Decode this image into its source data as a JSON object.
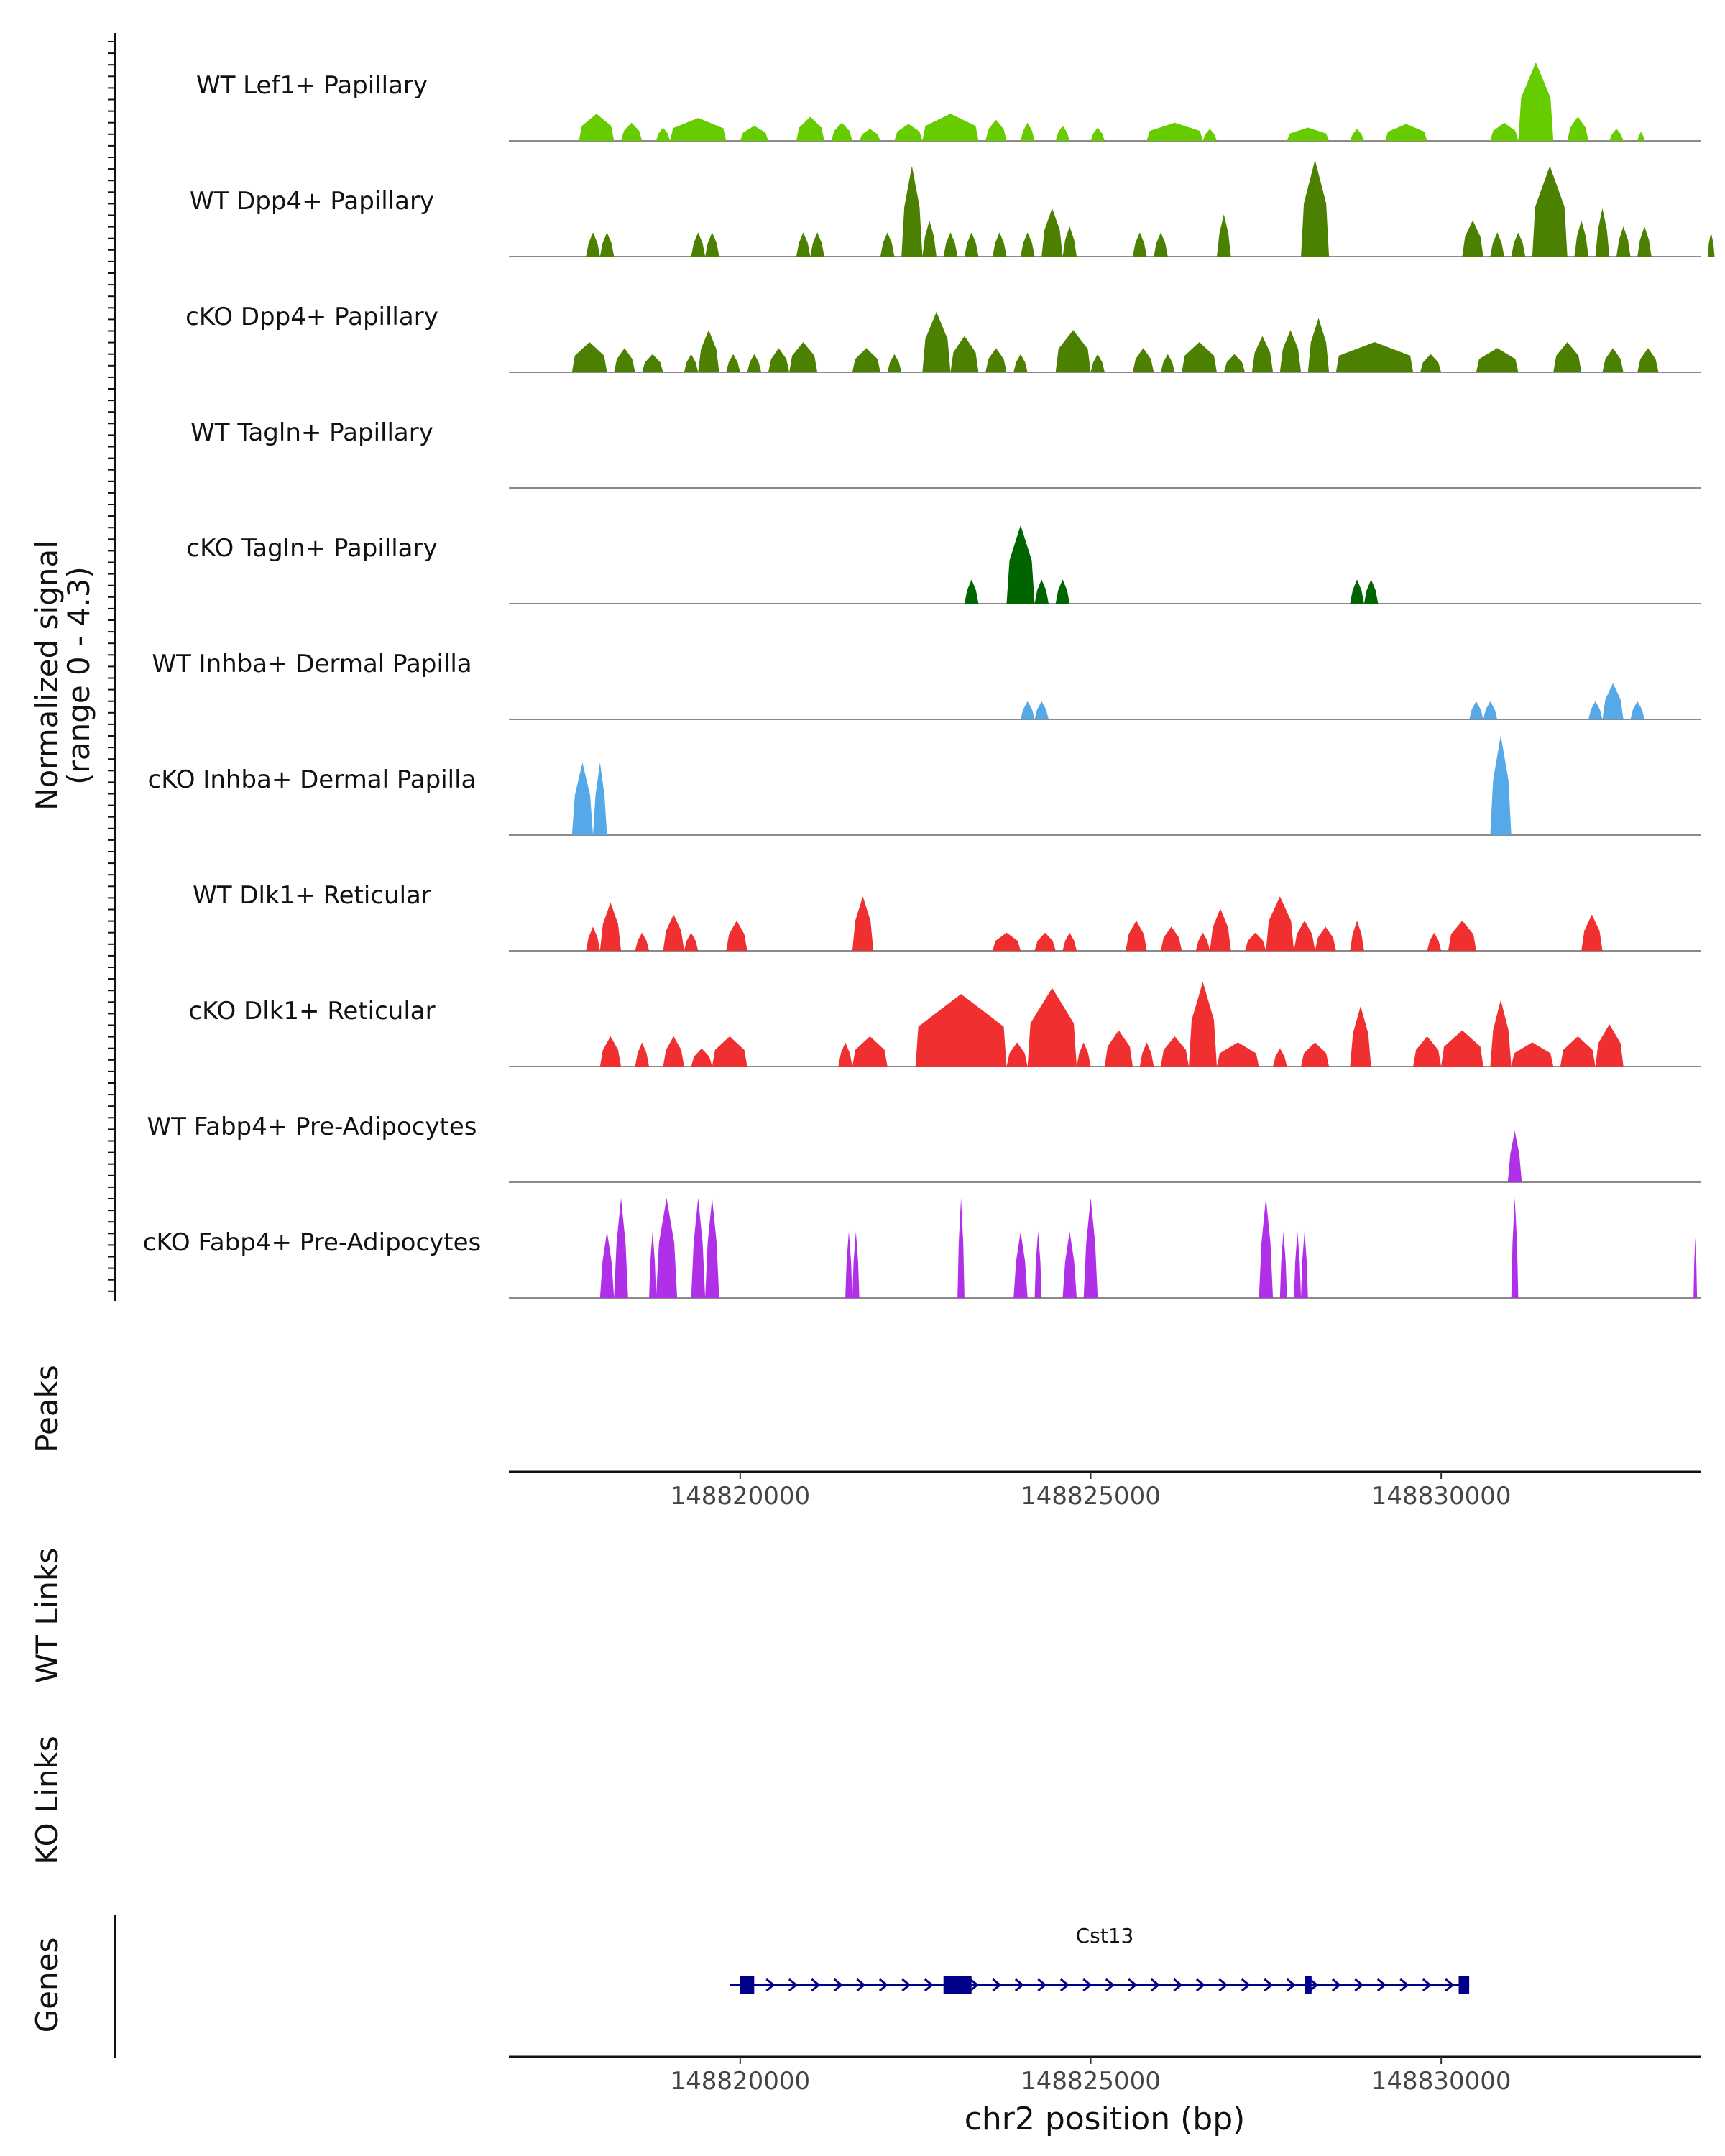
{
  "chart_data": {
    "type": "coverage",
    "region": {
      "chrom": "chr2",
      "start": 148816700,
      "end": 148833700
    },
    "xlabel": "chr2 position (bp)",
    "x_ticks": [
      148820000,
      148825000,
      148830000
    ],
    "x_tick_labels": [
      "148820000",
      "148825000",
      "148830000"
    ],
    "signal_axis_label": "Normalized signal",
    "signal_range_label": "(range 0 - 4.3)",
    "ylim": [
      0,
      4.3
    ],
    "panel_labels": {
      "peaks": "Peaks",
      "wt_links": "WT Links",
      "ko_links": "KO Links",
      "genes": "Genes"
    },
    "tracks": [
      {
        "name": "WT Lef1+ Papillary",
        "color": "#66cc00",
        "peaks": [
          [
            148817700,
            148818200,
            0.45
          ],
          [
            148818300,
            148818600,
            0.3
          ],
          [
            148818800,
            148819000,
            0.22
          ],
          [
            148819000,
            148819800,
            0.38
          ],
          [
            148820000,
            148820400,
            0.25
          ],
          [
            148820800,
            148821200,
            0.4
          ],
          [
            148821300,
            148821600,
            0.3
          ],
          [
            148821700,
            148822000,
            0.2
          ],
          [
            148822200,
            148822600,
            0.28
          ],
          [
            148822600,
            148823400,
            0.45
          ],
          [
            148823500,
            148823800,
            0.35
          ],
          [
            148824000,
            148824200,
            0.3
          ],
          [
            148824500,
            148824700,
            0.25
          ],
          [
            148825000,
            148825200,
            0.22
          ],
          [
            148825800,
            148826600,
            0.3
          ],
          [
            148826600,
            148826800,
            0.2
          ],
          [
            148827800,
            148828400,
            0.22
          ],
          [
            148828700,
            148828900,
            0.2
          ],
          [
            148829200,
            148829800,
            0.28
          ],
          [
            148830700,
            148831100,
            0.3
          ],
          [
            148831100,
            148831600,
            1.3
          ],
          [
            148831800,
            148832100,
            0.4
          ],
          [
            148832400,
            148832600,
            0.2
          ],
          [
            148832800,
            148832900,
            0.15
          ]
        ]
      },
      {
        "name": "WT Dpp4+ Papillary",
        "color": "#4c8000",
        "peaks": [
          [
            148817800,
            148818000,
            0.4
          ],
          [
            148818000,
            148818200,
            0.4
          ],
          [
            148819300,
            148819500,
            0.4
          ],
          [
            148819500,
            148819700,
            0.4
          ],
          [
            148820800,
            148821000,
            0.4
          ],
          [
            148821000,
            148821200,
            0.4
          ],
          [
            148822000,
            148822200,
            0.4
          ],
          [
            148822300,
            148822600,
            1.5
          ],
          [
            148822600,
            148822800,
            0.6
          ],
          [
            148822900,
            148823100,
            0.4
          ],
          [
            148823200,
            148823400,
            0.4
          ],
          [
            148823600,
            148823800,
            0.4
          ],
          [
            148824000,
            148824200,
            0.4
          ],
          [
            148824300,
            148824600,
            0.8
          ],
          [
            148824600,
            148824800,
            0.5
          ],
          [
            148825600,
            148825800,
            0.4
          ],
          [
            148825900,
            148826100,
            0.4
          ],
          [
            148826800,
            148827000,
            0.7
          ],
          [
            148828000,
            148828400,
            1.6
          ],
          [
            148830300,
            148830600,
            0.6
          ],
          [
            148830700,
            148830900,
            0.4
          ],
          [
            148831000,
            148831200,
            0.4
          ],
          [
            148831300,
            148831800,
            1.5
          ],
          [
            148831900,
            148832100,
            0.6
          ],
          [
            148832200,
            148832400,
            0.8
          ],
          [
            148832500,
            148832700,
            0.5
          ],
          [
            148832800,
            148833000,
            0.5
          ],
          [
            148833800,
            148833900,
            0.4
          ]
        ]
      },
      {
        "name": "cKO Dpp4+ Papillary",
        "color": "#4c8000",
        "peaks": [
          [
            148817600,
            148818100,
            0.5
          ],
          [
            148818200,
            148818500,
            0.4
          ],
          [
            148818600,
            148818900,
            0.3
          ],
          [
            148819200,
            148819400,
            0.3
          ],
          [
            148819400,
            148819700,
            0.7
          ],
          [
            148819800,
            148820000,
            0.3
          ],
          [
            148820100,
            148820300,
            0.3
          ],
          [
            148820400,
            148820700,
            0.4
          ],
          [
            148820700,
            148821100,
            0.5
          ],
          [
            148821600,
            148822000,
            0.4
          ],
          [
            148822100,
            148822300,
            0.3
          ],
          [
            148822600,
            148823000,
            1.0
          ],
          [
            148823000,
            148823400,
            0.6
          ],
          [
            148823500,
            148823800,
            0.4
          ],
          [
            148823900,
            148824100,
            0.3
          ],
          [
            148824500,
            148825000,
            0.7
          ],
          [
            148825000,
            148825200,
            0.3
          ],
          [
            148825600,
            148825900,
            0.4
          ],
          [
            148826000,
            148826200,
            0.3
          ],
          [
            148826300,
            148826800,
            0.5
          ],
          [
            148826900,
            148827200,
            0.3
          ],
          [
            148827300,
            148827600,
            0.6
          ],
          [
            148827700,
            148828000,
            0.7
          ],
          [
            148828100,
            148828400,
            0.9
          ],
          [
            148828500,
            148829600,
            0.5
          ],
          [
            148829700,
            148830000,
            0.3
          ],
          [
            148830500,
            148831100,
            0.4
          ],
          [
            148831600,
            148832000,
            0.5
          ],
          [
            148832300,
            148832600,
            0.4
          ],
          [
            148832800,
            148833100,
            0.4
          ]
        ]
      },
      {
        "name": "WT Tagln+ Papillary",
        "color": "#006400",
        "peaks": []
      },
      {
        "name": "cKO Tagln+ Papillary",
        "color": "#006400",
        "peaks": [
          [
            148823200,
            148823400,
            0.4
          ],
          [
            148823800,
            148824200,
            1.3
          ],
          [
            148824200,
            148824400,
            0.4
          ],
          [
            148824500,
            148824700,
            0.4
          ],
          [
            148828700,
            148828900,
            0.4
          ],
          [
            148828900,
            148829100,
            0.4
          ]
        ]
      },
      {
        "name": "WT Inhba+ Dermal Papilla",
        "color": "#56a9e8",
        "peaks": [
          [
            148824000,
            148824200,
            0.3
          ],
          [
            148824200,
            148824400,
            0.3
          ],
          [
            148830400,
            148830600,
            0.3
          ],
          [
            148830600,
            148830800,
            0.3
          ],
          [
            148832100,
            148832300,
            0.3
          ],
          [
            148832300,
            148832600,
            0.6
          ],
          [
            148832700,
            148832900,
            0.3
          ]
        ]
      },
      {
        "name": "cKO Inhba+ Dermal Papilla",
        "color": "#56a9e8",
        "peaks": [
          [
            148817600,
            148817900,
            1.2
          ],
          [
            148817900,
            148818100,
            1.2
          ],
          [
            148830700,
            148831000,
            2.5
          ]
        ]
      },
      {
        "name": "WT Dlk1+ Reticular",
        "color": "#f03030",
        "peaks": [
          [
            148817800,
            148818000,
            0.4
          ],
          [
            148818000,
            148818300,
            0.8
          ],
          [
            148818500,
            148818700,
            0.3
          ],
          [
            148818900,
            148819200,
            0.6
          ],
          [
            148819200,
            148819400,
            0.3
          ],
          [
            148819800,
            148820100,
            0.5
          ],
          [
            148821600,
            148821900,
            0.9
          ],
          [
            148823600,
            148824000,
            0.3
          ],
          [
            148824200,
            148824500,
            0.3
          ],
          [
            148824600,
            148824800,
            0.3
          ],
          [
            148825500,
            148825800,
            0.5
          ],
          [
            148826000,
            148826300,
            0.4
          ],
          [
            148826500,
            148826700,
            0.3
          ],
          [
            148826700,
            148827000,
            0.7
          ],
          [
            148827200,
            148827500,
            0.3
          ],
          [
            148827500,
            148827900,
            0.9
          ],
          [
            148827900,
            148828200,
            0.5
          ],
          [
            148828200,
            148828500,
            0.4
          ],
          [
            148828700,
            148828900,
            0.5
          ],
          [
            148829800,
            148830000,
            0.3
          ],
          [
            148830100,
            148830500,
            0.5
          ],
          [
            148832000,
            148832300,
            0.6
          ]
        ]
      },
      {
        "name": "cKO Dlk1+ Reticular",
        "color": "#f03030",
        "peaks": [
          [
            148818000,
            148818300,
            0.5
          ],
          [
            148818500,
            148818700,
            0.4
          ],
          [
            148818900,
            148819200,
            0.5
          ],
          [
            148819300,
            148819600,
            0.3
          ],
          [
            148819600,
            148820100,
            0.5
          ],
          [
            148821400,
            148821600,
            0.4
          ],
          [
            148821600,
            148822100,
            0.5
          ],
          [
            148822500,
            148823800,
            1.2
          ],
          [
            148823800,
            148824100,
            0.4
          ],
          [
            148824100,
            148824800,
            1.3
          ],
          [
            148824800,
            148825000,
            0.4
          ],
          [
            148825200,
            148825600,
            0.6
          ],
          [
            148825700,
            148825900,
            0.4
          ],
          [
            148826000,
            148826400,
            0.5
          ],
          [
            148826400,
            148826800,
            1.4
          ],
          [
            148826800,
            148827400,
            0.4
          ],
          [
            148827600,
            148827800,
            0.3
          ],
          [
            148828000,
            148828400,
            0.4
          ],
          [
            148828700,
            148829000,
            1.0
          ],
          [
            148829600,
            148830000,
            0.5
          ],
          [
            148830000,
            148830600,
            0.6
          ],
          [
            148830700,
            148831000,
            1.1
          ],
          [
            148831000,
            148831600,
            0.4
          ],
          [
            148831700,
            148832200,
            0.5
          ],
          [
            148832200,
            148832600,
            0.7
          ]
        ]
      },
      {
        "name": "WT Fabp4+ Pre-Adipocytes",
        "color": "#b030e8",
        "peaks": [
          [
            148830950,
            148831150,
            0.85
          ]
        ]
      },
      {
        "name": "cKO Fabp4+ Pre-Adipocytes",
        "color": "#b030e8",
        "peaks": [
          [
            148818000,
            148818200,
            1.1
          ],
          [
            148818200,
            148818400,
            3.2
          ],
          [
            148818700,
            148818800,
            1.1
          ],
          [
            148818800,
            148819100,
            3.2
          ],
          [
            148819300,
            148819500,
            2.2
          ],
          [
            148819500,
            148819700,
            2.2
          ],
          [
            148821500,
            148821600,
            1.1
          ],
          [
            148821600,
            148821700,
            1.1
          ],
          [
            148823100,
            148823200,
            2.2
          ],
          [
            148823900,
            148824100,
            1.1
          ],
          [
            148824200,
            148824300,
            1.1
          ],
          [
            148824600,
            148824800,
            1.1
          ],
          [
            148824900,
            148825100,
            2.2
          ],
          [
            148827400,
            148827600,
            2.2
          ],
          [
            148827700,
            148827800,
            1.1
          ],
          [
            148827900,
            148828000,
            1.1
          ],
          [
            148828000,
            148828100,
            1.1
          ],
          [
            148831000,
            148831100,
            2.2
          ],
          [
            148833600,
            148833650,
            1.0
          ]
        ]
      }
    ],
    "genes": [
      {
        "name": "Cst13",
        "start": 148820000,
        "end": 148830400,
        "strand": "+",
        "exons": [
          [
            148820000,
            148820200
          ],
          [
            148822900,
            148823300
          ],
          [
            148828050,
            148828150
          ],
          [
            148830250,
            148830400
          ]
        ]
      }
    ]
  }
}
